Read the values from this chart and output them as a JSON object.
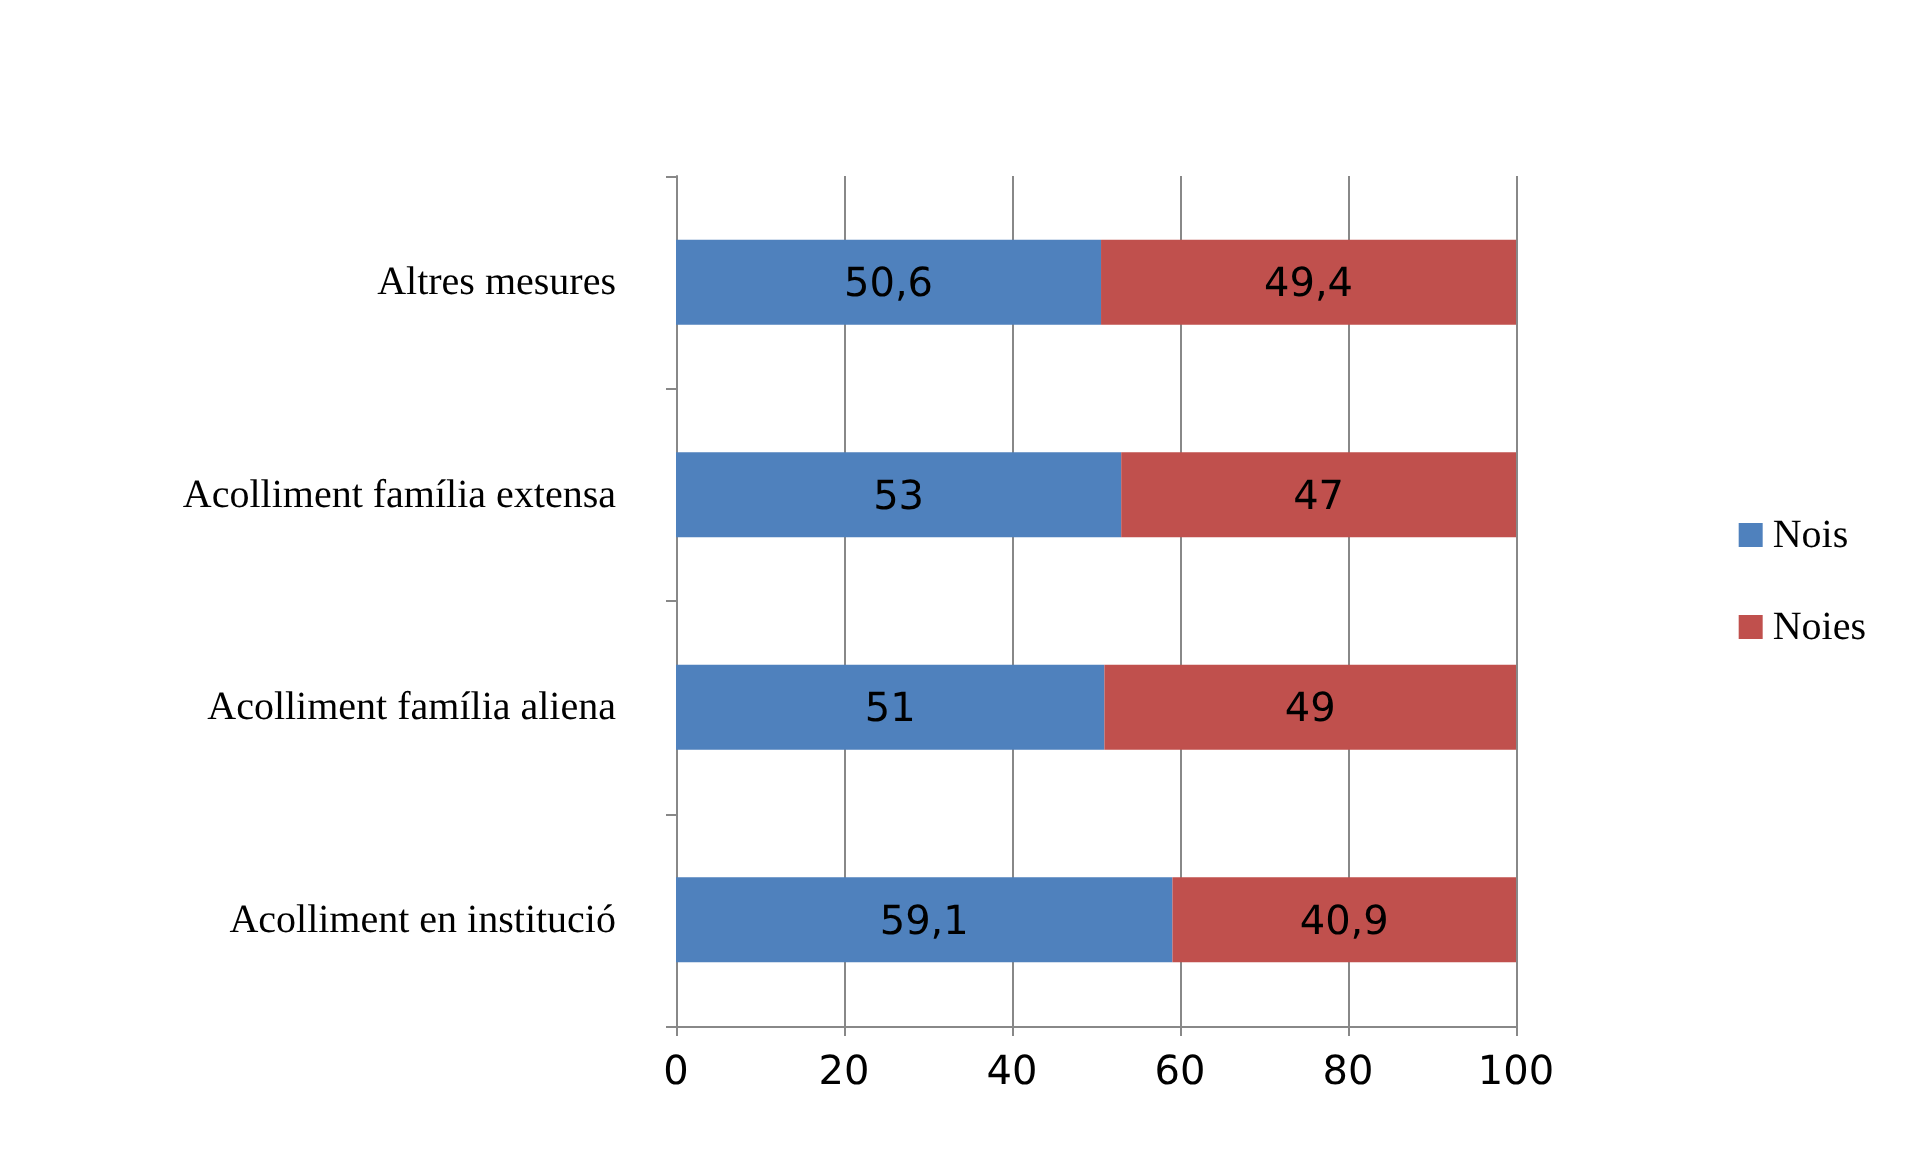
{
  "chart_data": {
    "type": "bar",
    "orientation": "horizontal",
    "stacked": true,
    "categories": [
      "Altres mesures",
      "Acolliment família extensa",
      "Acolliment família aliena",
      "Acolliment en institució"
    ],
    "series": [
      {
        "name": "Nois",
        "color": "#4f81bd",
        "values": [
          50.6,
          53,
          51,
          59.1
        ],
        "value_labels": [
          "50,6",
          "53",
          "51",
          "59,1"
        ]
      },
      {
        "name": "Noies",
        "color": "#c0504d",
        "values": [
          49.4,
          47,
          49,
          40.9
        ],
        "value_labels": [
          "49,4",
          "47",
          "49",
          "40,9"
        ]
      }
    ],
    "xlim": [
      0,
      100
    ],
    "xticks": [
      0,
      20,
      40,
      60,
      80,
      100
    ],
    "grid": "x",
    "legend": "right"
  }
}
